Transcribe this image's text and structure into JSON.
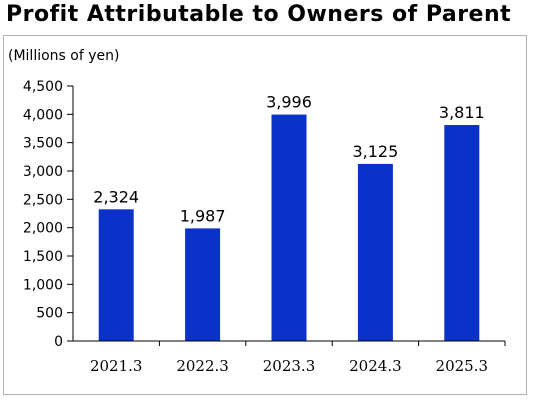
{
  "title": "Profit Attributable to Owners of Parent",
  "chart_data": {
    "type": "bar",
    "unit_label": "(Millions of yen)",
    "categories": [
      "2021.3",
      "2022.3",
      "2023.3",
      "2024.3",
      "2025.3"
    ],
    "values": [
      2324,
      1987,
      3996,
      3125,
      3811
    ],
    "data_labels": [
      "2,324",
      "1,987",
      "3,996",
      "3,125",
      "3,811"
    ],
    "ylim": [
      0,
      4500
    ],
    "yticks": [
      0,
      500,
      1000,
      1500,
      2000,
      2500,
      3000,
      3500,
      4000,
      4500
    ],
    "ytick_labels": [
      "0",
      "500",
      "1,000",
      "1,500",
      "2,000",
      "2,500",
      "3,000",
      "3,500",
      "4,000",
      "4,500"
    ],
    "bar_color": "#0a32c8",
    "grid": false,
    "legend": "none"
  }
}
